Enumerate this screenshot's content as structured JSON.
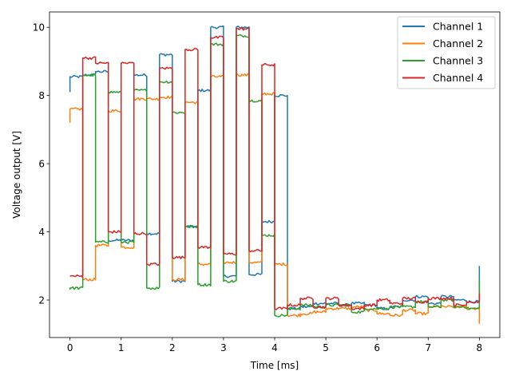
{
  "chart_data": {
    "type": "line",
    "title": "",
    "xlabel": "Time [ms]",
    "ylabel": "Voltage output [V]",
    "xlim": [
      -0.4,
      8.4
    ],
    "ylim": [
      0.9,
      10.45
    ],
    "xticks": [
      0,
      1,
      2,
      3,
      4,
      5,
      6,
      7,
      8
    ],
    "yticks": [
      2,
      4,
      6,
      8,
      10
    ],
    "legend_position": "top-right",
    "grid": false,
    "step_ms": 0.25,
    "series": [
      {
        "name": "Channel 1",
        "color": "#1f77b4",
        "start": 8.1,
        "end": 3.0,
        "levels": [
          8.55,
          8.6,
          8.7,
          3.75,
          3.75,
          8.6,
          3.95,
          9.2,
          2.55,
          4.15,
          8.15,
          10.0,
          2.7,
          10.0,
          2.75,
          4.3,
          8.0,
          1.75,
          1.8,
          1.9,
          1.9,
          1.85,
          1.9,
          1.85,
          1.75,
          1.8,
          2.0,
          2.1,
          1.9,
          2.1,
          2.0,
          1.95
        ]
      },
      {
        "name": "Channel 2",
        "color": "#ff7f0e",
        "start": 7.2,
        "end": 1.3,
        "levels": [
          7.6,
          2.6,
          3.6,
          7.55,
          3.55,
          7.9,
          7.9,
          7.95,
          2.6,
          7.8,
          3.05,
          8.55,
          3.1,
          8.6,
          3.1,
          8.05,
          3.05,
          1.55,
          1.6,
          1.65,
          1.75,
          1.75,
          1.8,
          1.7,
          1.6,
          1.55,
          1.7,
          1.6,
          1.8,
          1.8,
          1.8,
          1.75
        ]
      },
      {
        "name": "Channel 3",
        "color": "#2ca02c",
        "start": 2.3,
        "end": 2.6,
        "levels": [
          2.35,
          8.6,
          3.7,
          8.1,
          3.7,
          8.15,
          2.35,
          8.4,
          7.5,
          4.15,
          2.45,
          9.5,
          2.55,
          9.75,
          7.85,
          3.9,
          1.55,
          1.75,
          1.85,
          1.8,
          1.85,
          1.85,
          1.65,
          1.75,
          1.75,
          1.8,
          1.8,
          1.95,
          1.8,
          2.0,
          1.8,
          1.75
        ]
      },
      {
        "name": "Channel 4",
        "color": "#d62728",
        "start": 2.7,
        "end": 2.2,
        "levels": [
          2.7,
          9.1,
          8.95,
          4.0,
          8.95,
          3.95,
          3.05,
          8.8,
          3.25,
          9.35,
          3.55,
          9.7,
          3.35,
          9.95,
          3.45,
          8.9,
          1.75,
          1.85,
          2.05,
          1.8,
          2.05,
          1.85,
          1.75,
          1.85,
          2.0,
          1.9,
          2.05,
          1.95,
          2.05,
          2.05,
          1.85,
          1.95
        ]
      }
    ]
  }
}
